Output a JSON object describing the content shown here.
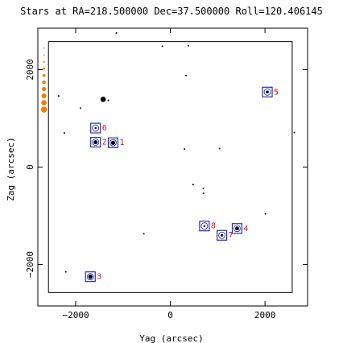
{
  "chart_data": {
    "type": "scatter",
    "title": "Stars at RA=218.500000 Dec=37.500000 Roll=120.406145",
    "xlabel": "Yag (arcsec)",
    "ylabel": "Zag (arcsec)",
    "xlim": [
      -2800,
      2900
    ],
    "ylim": [
      -2850,
      2850
    ],
    "x_ticks": [
      -2000,
      0,
      2000
    ],
    "x_tick_labels": [
      "−2000",
      "0",
      "2000"
    ],
    "y_ticks": [
      -2000,
      0,
      2000
    ],
    "y_tick_labels": [
      "−2000",
      "0",
      "2000"
    ],
    "grid": false,
    "colors": {
      "star": "#000000",
      "box": "#1a1aa8",
      "label": "#e01010",
      "scale": "#f08000"
    },
    "fov_box": [
      -2575,
      2575,
      -2575,
      2575
    ],
    "stars": [
      {
        "x": -1690,
        "y": -2250,
        "mag": 8.6
      },
      {
        "x": -1580,
        "y": 510,
        "mag": 8.8
      },
      {
        "x": -1580,
        "y": 800,
        "mag": 10.2
      },
      {
        "x": -1420,
        "y": 1390,
        "mag": 7.9
      },
      {
        "x": -1310,
        "y": 1370,
        "mag": 10.6
      },
      {
        "x": -1210,
        "y": 500,
        "mag": 8.6
      },
      {
        "x": -1140,
        "y": 2750,
        "mag": 10.8
      },
      {
        "x": -2360,
        "y": 1460,
        "mag": 10.6
      },
      {
        "x": -1900,
        "y": 1210,
        "mag": 10.6
      },
      {
        "x": -2240,
        "y": 700,
        "mag": 10.8
      },
      {
        "x": -2210,
        "y": -2150,
        "mag": 10.7
      },
      {
        "x": -560,
        "y": -1370,
        "mag": 10.6
      },
      {
        "x": -170,
        "y": 2480,
        "mag": 10.8
      },
      {
        "x": 380,
        "y": 2490,
        "mag": 10.6
      },
      {
        "x": 330,
        "y": 1880,
        "mag": 10.8
      },
      {
        "x": 300,
        "y": 370,
        "mag": 10.6
      },
      {
        "x": 1040,
        "y": 380,
        "mag": 10.5
      },
      {
        "x": 480,
        "y": -360,
        "mag": 10.7
      },
      {
        "x": 700,
        "y": -440,
        "mag": 10.8
      },
      {
        "x": 700,
        "y": -540,
        "mag": 10.8
      },
      {
        "x": 1090,
        "y": -1400,
        "mag": 9.8
      },
      {
        "x": 1410,
        "y": -1260,
        "mag": 8.9
      },
      {
        "x": 720,
        "y": -1210,
        "mag": 10.2
      },
      {
        "x": 2050,
        "y": 1540,
        "mag": 9.5
      },
      {
        "x": 2010,
        "y": -960,
        "mag": 10.8
      },
      {
        "x": 2620,
        "y": 710,
        "mag": 10.7
      }
    ],
    "markers": [
      {
        "id": "1",
        "x": -1210,
        "y": 500
      },
      {
        "id": "2",
        "x": -1580,
        "y": 510
      },
      {
        "id": "3",
        "x": -1690,
        "y": -2250
      },
      {
        "id": "4",
        "x": 1410,
        "y": -1260
      },
      {
        "id": "5",
        "x": 2050,
        "y": 1540
      },
      {
        "id": "6",
        "x": -1580,
        "y": 800
      },
      {
        "id": "7",
        "x": 1090,
        "y": -1400
      },
      {
        "id": "8",
        "x": 720,
        "y": -1210
      }
    ],
    "mag_scale": [
      6.0,
      6.5,
      7.0,
      7.5,
      8.0,
      8.5,
      9.0,
      9.5,
      10.0,
      10.5
    ]
  }
}
